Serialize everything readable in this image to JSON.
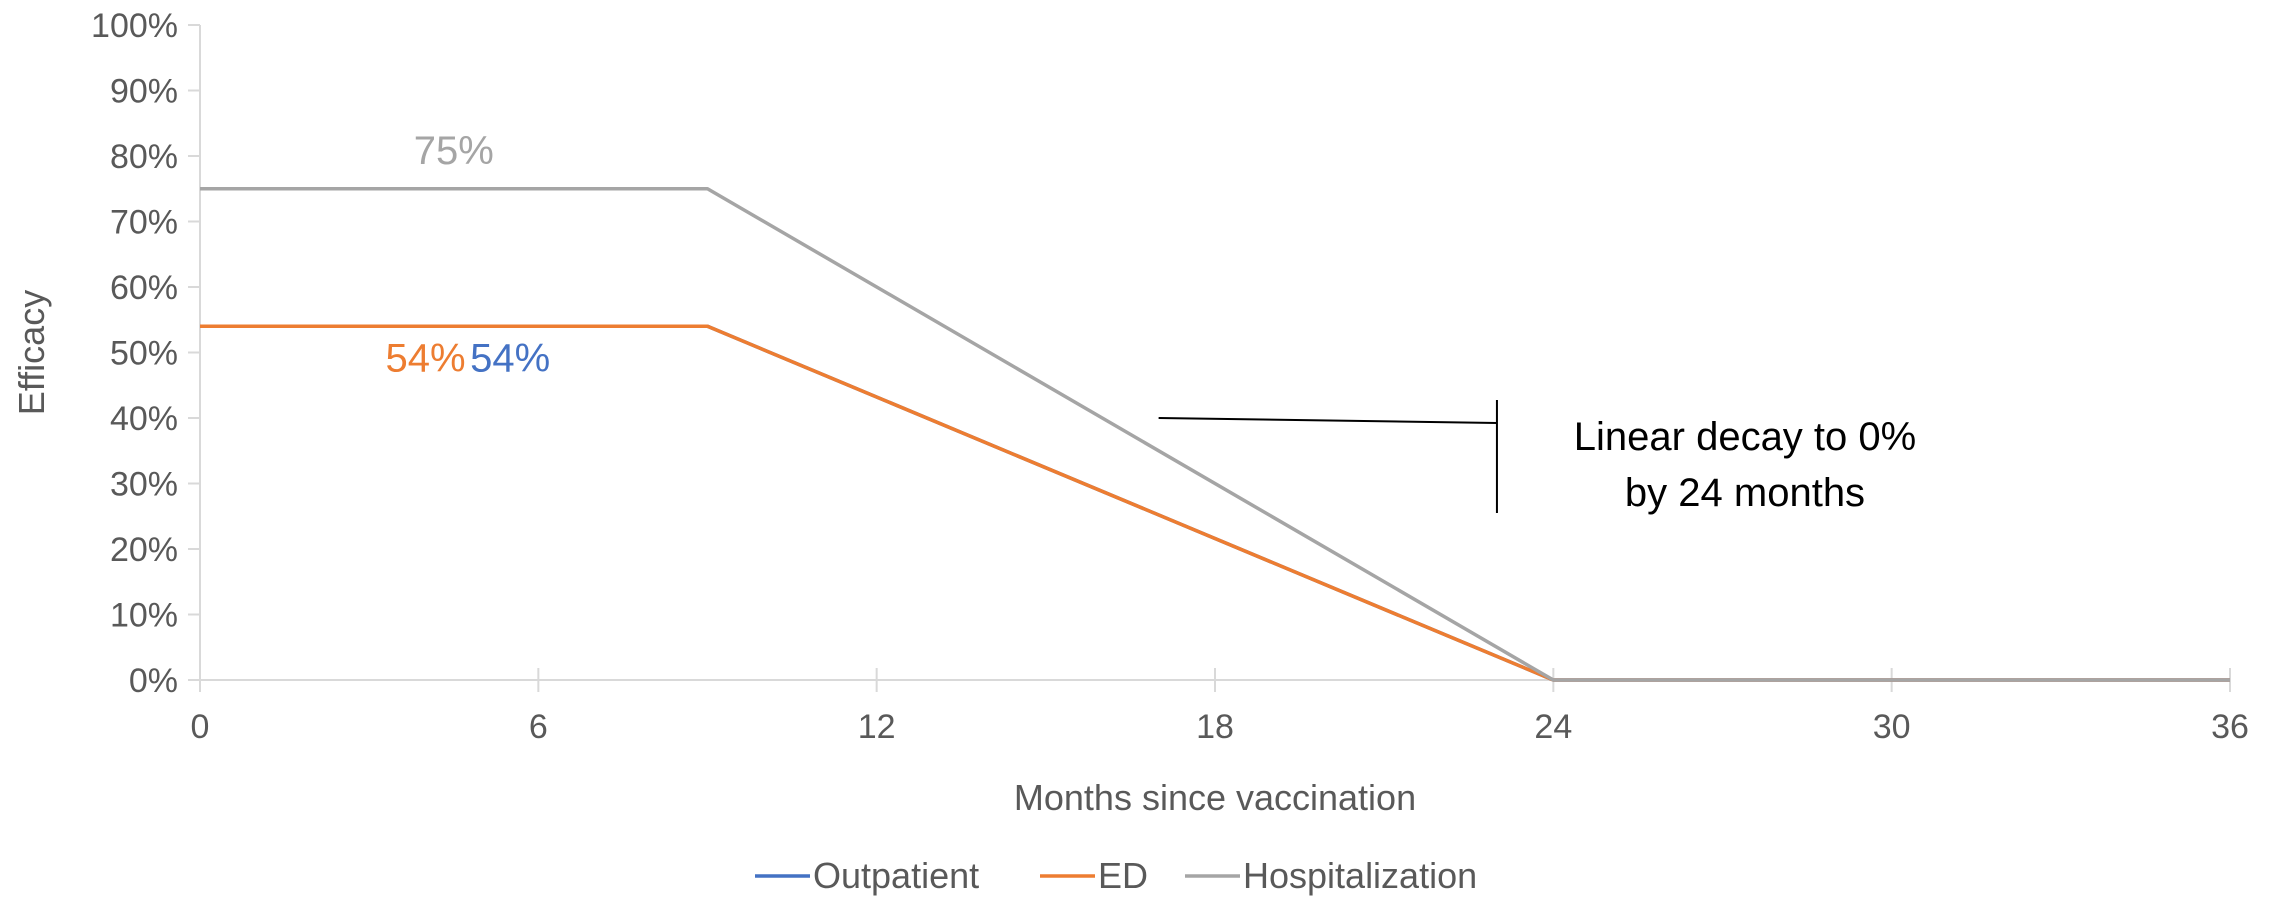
{
  "chart_data": {
    "type": "line",
    "xlabel": "Months since vaccination",
    "ylabel": "Efficacy",
    "xlim": [
      0,
      36
    ],
    "ylim": [
      0,
      100
    ],
    "x_ticks": [
      0,
      6,
      12,
      18,
      24,
      30,
      36
    ],
    "x_tick_labels": [
      "0",
      "6",
      "12",
      "18",
      "24",
      "30",
      "36"
    ],
    "y_ticks": [
      0,
      10,
      20,
      30,
      40,
      50,
      60,
      70,
      80,
      90,
      100
    ],
    "y_tick_labels": [
      "0%",
      "10%",
      "20%",
      "30%",
      "40%",
      "50%",
      "60%",
      "70%",
      "80%",
      "90%",
      "100%"
    ],
    "grid": false,
    "legend_position": "bottom",
    "series": [
      {
        "name": "Outpatient",
        "color": "#4472C4",
        "x": [
          0,
          9,
          24,
          36
        ],
        "y": [
          54,
          54,
          0,
          0
        ]
      },
      {
        "name": "ED",
        "color": "#ED7D31",
        "x": [
          0,
          9,
          24,
          36
        ],
        "y": [
          54,
          54,
          0,
          0
        ]
      },
      {
        "name": "Hospitalization",
        "color": "#A5A5A5",
        "x": [
          0,
          9,
          24,
          36
        ],
        "y": [
          75,
          75,
          0,
          0
        ]
      }
    ],
    "data_labels": [
      {
        "text": "75%",
        "series": "Hospitalization",
        "color": "#A5A5A5",
        "x": 4.5,
        "y": 75
      },
      {
        "text": "54%",
        "series": "ED",
        "color": "#ED7D31",
        "x": 4,
        "y": 54
      },
      {
        "text": "54%",
        "series": "Outpatient",
        "color": "#4472C4",
        "x": 5.5,
        "y": 54
      }
    ],
    "annotation": {
      "lines": [
        "Linear decay to 0%",
        "by 24 months"
      ],
      "points_to": {
        "x": 17,
        "y": 40
      }
    }
  },
  "colors": {
    "axis": "#D9D9D9",
    "text": "#595959",
    "annotation": "#000000"
  }
}
